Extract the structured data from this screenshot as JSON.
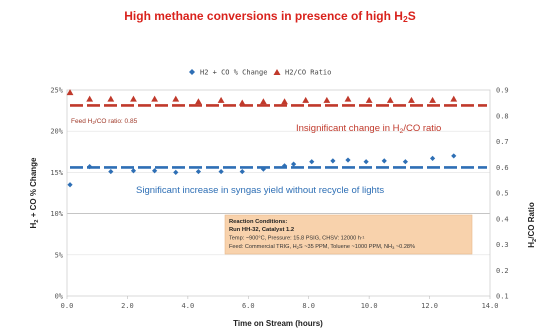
{
  "chart_data": {
    "type": "scatter",
    "title": "High methane conversions in presence of high H2S",
    "xlabel": "Time on Stream (hours)",
    "ylabel_left": "H2 + CO % Change",
    "ylabel_right": "H2/CO Ratio",
    "xlim": [
      0,
      14
    ],
    "ylim_left": [
      0,
      25
    ],
    "ylim_right": [
      0.1,
      0.9
    ],
    "x_ticks": [
      "0.0",
      "2.0",
      "4.0",
      "6.0",
      "8.0",
      "10.0",
      "12.0",
      "14.0"
    ],
    "y_left_ticks": [
      "0%",
      "5%",
      "10%",
      "15%",
      "20%",
      "25%"
    ],
    "y_right_ticks": [
      "0.1",
      "0.2",
      "0.3",
      "0.4",
      "0.5",
      "0.6",
      "0.7",
      "0.8",
      "0.9"
    ],
    "legend_position": "top",
    "grid": true,
    "series": [
      {
        "name": "H2 + CO % Change",
        "axis": "left",
        "color": "#2e6fb5",
        "marker": "diamond",
        "x": [
          0.1,
          0.75,
          1.45,
          2.2,
          2.9,
          3.6,
          4.35,
          5.1,
          5.8,
          6.5,
          7.2,
          7.5,
          8.1,
          8.8,
          9.3,
          9.9,
          10.5,
          11.2,
          12.1,
          12.8
        ],
        "values": [
          13.5,
          15.7,
          15.1,
          15.2,
          15.2,
          15.0,
          15.1,
          15.1,
          15.1,
          15.4,
          15.8,
          16.0,
          16.3,
          16.4,
          16.5,
          16.3,
          16.4,
          16.3,
          16.7,
          17.0
        ]
      },
      {
        "name": "H2/CO Ratio",
        "axis": "right",
        "color": "#c0392b",
        "marker": "triangle",
        "x": [
          0.1,
          0.75,
          1.45,
          2.2,
          2.9,
          3.6,
          4.35,
          5.1,
          5.8,
          6.5,
          7.2,
          7.9,
          8.6,
          9.3,
          10.0,
          10.7,
          11.4,
          12.1,
          12.8
        ],
        "values": [
          0.89,
          0.865,
          0.865,
          0.865,
          0.865,
          0.865,
          0.855,
          0.86,
          0.85,
          0.855,
          0.855,
          0.86,
          0.86,
          0.865,
          0.86,
          0.86,
          0.86,
          0.86,
          0.865
        ]
      }
    ],
    "reference_lines": [
      {
        "axis": "left",
        "value": 15.6,
        "color": "#2e6fb5",
        "style": "dashed"
      },
      {
        "axis": "right",
        "value": 0.84,
        "color": "#c0392b",
        "style": "dashed"
      }
    ],
    "annotations": {
      "feed_ratio": "Feed H₂/CO ratio: 0.85",
      "red_note": "Insignificant change in H₂/CO ratio",
      "blue_note": "Significant increase in syngas yield without recycle of lights",
      "conditions": {
        "title": "Reaction Conditions:",
        "run": "Run HH-32, Catalyst 1.2",
        "params": "Temp: ~900°C, Pressure: 15.8 PSIG, CHSV: 12000 h⁻¹",
        "feed": "Feed: Commercial TRIG, H₂S ~35 PPM, Toluene ~1000 PPM, NH₃ ~0.28%",
        "bg_color": "#f8d2ac"
      }
    }
  }
}
